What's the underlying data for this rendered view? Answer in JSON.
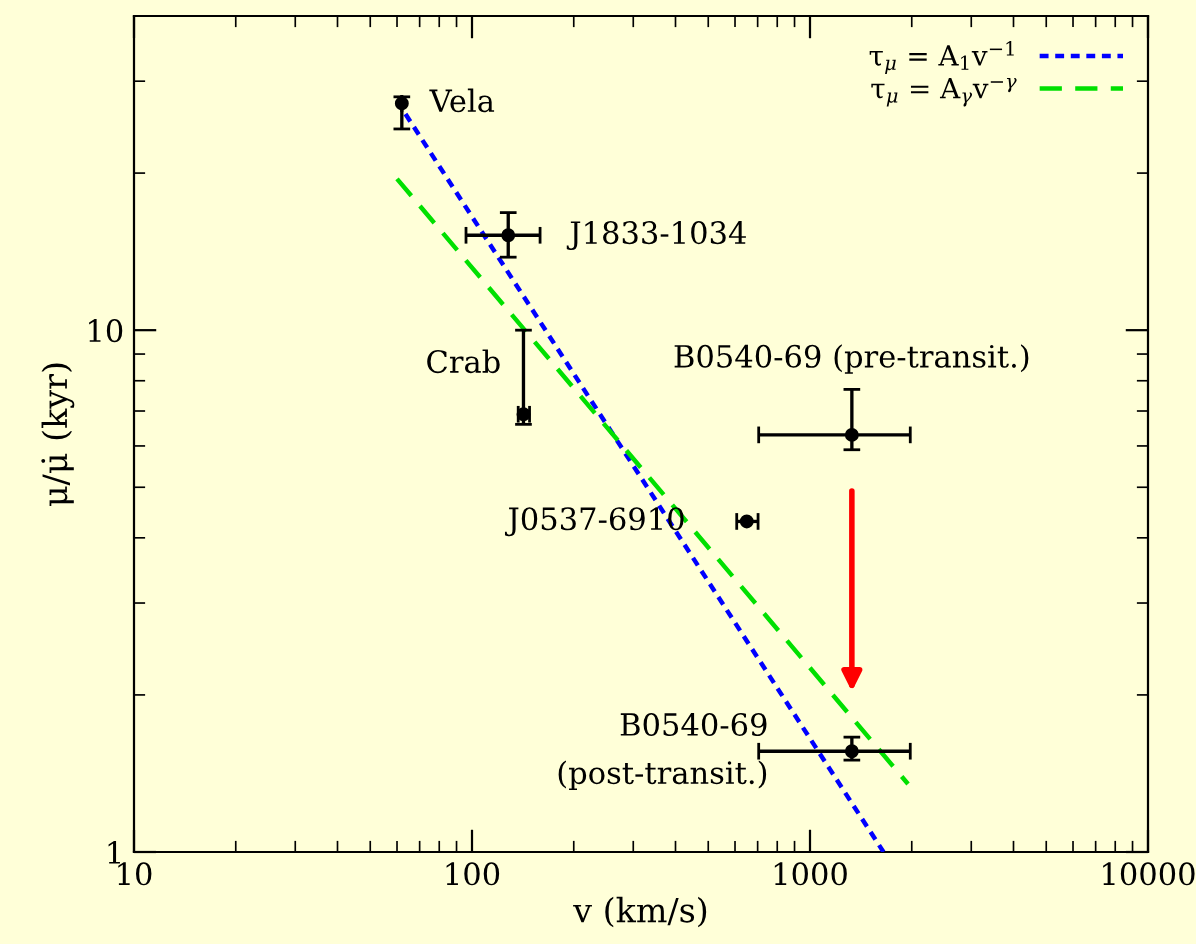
{
  "chart_data": {
    "type": "scatter",
    "xlabel": "v (km/s)",
    "ylabel": "μ/μ̇ (kyr)",
    "log": "xy",
    "xlim": [
      10,
      10000
    ],
    "ylim": [
      1,
      40
    ],
    "xticks": [
      10,
      100,
      1000,
      10000
    ],
    "yticks": [
      1,
      10
    ],
    "grid": false,
    "legend": "top right",
    "series": [
      {
        "color": "#000000",
        "marker": "circle",
        "x": [
          62,
          128,
          142,
          1330,
          650,
          1330
        ],
        "values": [
          27.2,
          15.2,
          6.9,
          6.3,
          4.3,
          1.56
        ],
        "errors": [
          [
            24.3,
            28.0
          ],
          [
            13.8,
            16.8
          ],
          [
            6.6,
            10.0
          ],
          [
            5.9,
            7.7
          ],
          null,
          [
            1.5,
            1.66
          ]
        ],
        "xerrors": [
          null,
          [
            96,
            159
          ],
          [
            137,
            148
          ],
          [
            705,
            1980
          ],
          [
            607,
            702
          ],
          [
            705,
            1980
          ]
        ]
      },
      {
        "type": "line",
        "name": "τ$_{μ}$ = A$_{1}$v$^{−1}$",
        "color": "#0000ff",
        "line_style": "dotted",
        "x": [
          60,
          1650
        ],
        "values": [
          27.5,
          1.0
        ]
      },
      {
        "type": "line",
        "name": "τ$_{μ}$ = A$_{γ}$v$^{−γ}$",
        "color": "#00e000",
        "line_style": "dashed",
        "x": [
          60,
          1950
        ],
        "values": [
          19.5,
          1.35
        ]
      }
    ],
    "annotations": [
      {
        "text": "Vela",
        "x": 62,
        "y": 27.2
      },
      {
        "text": "J1833-1034",
        "x": 128,
        "y": 15.2
      },
      {
        "text": "Crab",
        "x": 142,
        "y": 6.9
      },
      {
        "text": "B0540-69 (pre-transit.)",
        "x": 1330,
        "y": 6.3
      },
      {
        "text": "J0537-6910",
        "x": 650,
        "y": 4.3
      },
      {
        "text": "B0540-69\n(post-transit.)",
        "x": 1330,
        "y": 1.56
      }
    ]
  }
}
